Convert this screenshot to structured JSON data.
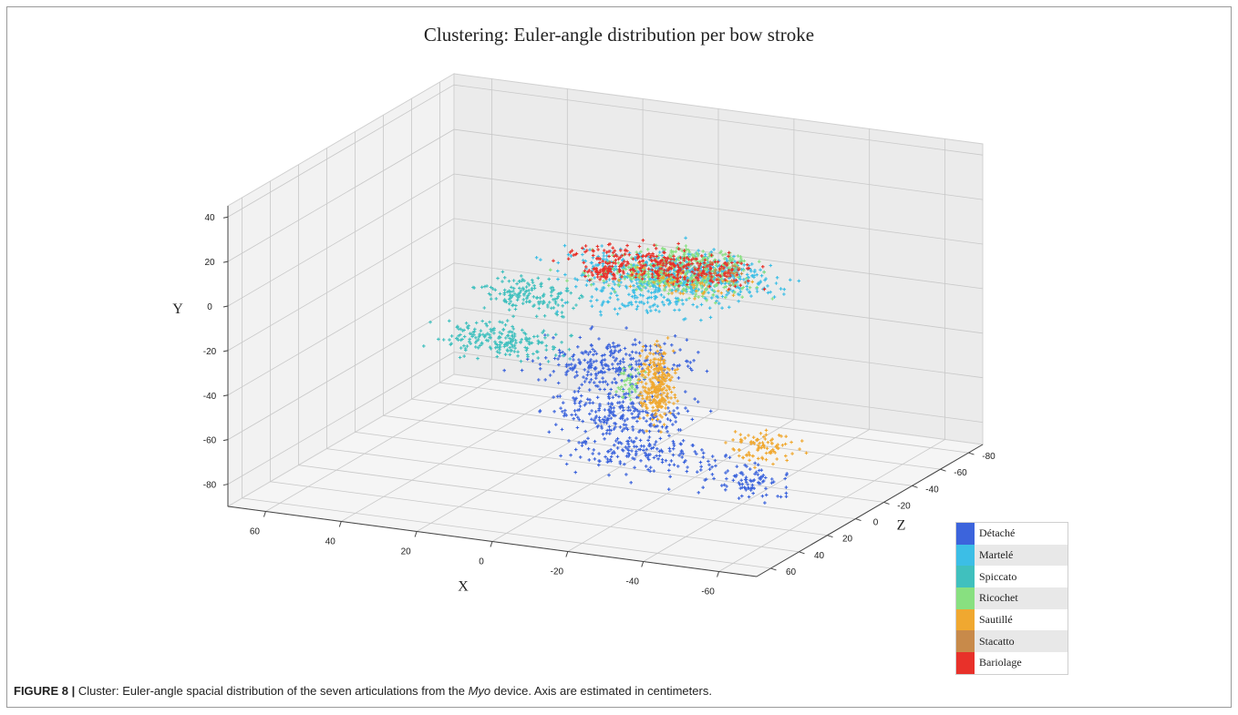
{
  "chart_data": {
    "type": "scatter",
    "title": "Clustering: Euler-angle distribution per bow stroke",
    "axes": {
      "x": {
        "label": "X",
        "ticks": [
          60,
          40,
          20,
          0,
          -20,
          -40,
          -60
        ],
        "range": [
          70,
          -70
        ]
      },
      "y": {
        "label": "Y",
        "ticks": [
          40,
          20,
          0,
          -20,
          -40,
          -60,
          -80
        ],
        "range": [
          -90,
          45
        ]
      },
      "z": {
        "label": "Z",
        "ticks": [
          60,
          40,
          20,
          0,
          -20,
          -40,
          -60,
          -80
        ],
        "range": [
          -90,
          70
        ]
      }
    },
    "grid": true,
    "legend_position": "bottom-right",
    "series": [
      {
        "name": "Détaché",
        "color": "#3c64dc",
        "clusters": [
          [
            -10,
            -28,
            15,
            26,
            12,
            28,
            260
          ],
          [
            -15,
            -48,
            18,
            26,
            10,
            26,
            230
          ],
          [
            -20,
            -65,
            18,
            28,
            8,
            28,
            170
          ],
          [
            -45,
            -75,
            10,
            15,
            10,
            12,
            90
          ]
        ]
      },
      {
        "name": "Martelé",
        "color": "#3cbee6",
        "clusters": [
          [
            -30,
            20,
            30,
            40,
            8,
            25,
            300
          ],
          [
            -40,
            30,
            40,
            35,
            10,
            20,
            250
          ],
          [
            -25,
            8,
            25,
            25,
            6,
            25,
            120
          ],
          [
            -55,
            40,
            65,
            15,
            5,
            8,
            80
          ]
        ]
      },
      {
        "name": "Spiccato",
        "color": "#40c0be",
        "clusters": [
          [
            30,
            -25,
            -35,
            20,
            10,
            10,
            150
          ],
          [
            35,
            -45,
            -30,
            22,
            10,
            15,
            200
          ]
        ]
      },
      {
        "name": "Ricochet",
        "color": "#88e080",
        "clusters": [
          [
            -35,
            25,
            40,
            30,
            8,
            22,
            260
          ],
          [
            -48,
            40,
            50,
            20,
            4,
            15,
            120
          ],
          [
            -12,
            -40,
            5,
            5,
            12,
            5,
            40
          ]
        ]
      },
      {
        "name": "Sautillé",
        "color": "#f0a830",
        "clusters": [
          [
            -18,
            -40,
            2,
            6,
            25,
            6,
            260
          ],
          [
            -42,
            -68,
            -10,
            12,
            10,
            8,
            90
          ],
          [
            -35,
            18,
            25,
            25,
            6,
            15,
            70
          ]
        ]
      },
      {
        "name": "Stacatto",
        "color": "#c88a4a",
        "clusters": [
          [
            -55,
            38,
            55,
            10,
            5,
            8,
            40
          ]
        ]
      },
      {
        "name": "Bariolage",
        "color": "#e8312a",
        "clusters": [
          [
            -32,
            28,
            35,
            35,
            8,
            20,
            300
          ],
          [
            -10,
            15,
            20,
            6,
            4,
            6,
            60
          ]
        ]
      }
    ]
  },
  "caption": {
    "label": "FIGURE 8 |",
    "text_before": " Cluster: Euler-angle spacial distribution of the seven articulations from the ",
    "device": "Myo",
    "text_after": " device. Axis are estimated in centimeters."
  }
}
